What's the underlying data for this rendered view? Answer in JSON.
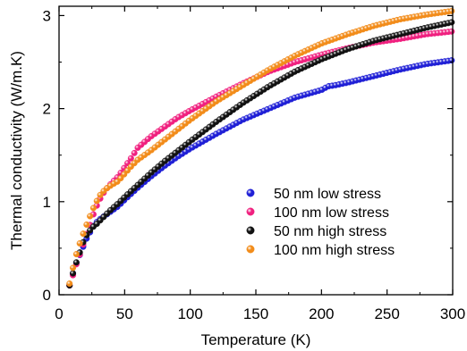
{
  "chart_data": {
    "type": "scatter",
    "title": "",
    "xlabel": "Temperature (K)",
    "ylabel": "Thermal conductivity (W/m.K)",
    "xlim": [
      0,
      300
    ],
    "ylim": [
      0,
      3.1
    ],
    "xticks": [
      0,
      50,
      100,
      150,
      200,
      250,
      300
    ],
    "yticks": [
      0,
      1,
      2,
      3
    ],
    "grid": false,
    "legend_position": "center-right",
    "series": [
      {
        "name": "50 nm low stress",
        "color": "#1f1fd6",
        "x": [
          8,
          10,
          12,
          15,
          18,
          20,
          23,
          25,
          28,
          30,
          35,
          40,
          45,
          50,
          60,
          70,
          80,
          90,
          100,
          120,
          140,
          160,
          180,
          200,
          205,
          210,
          220,
          240,
          260,
          280,
          300
        ],
        "y": [
          0.1,
          0.2,
          0.3,
          0.4,
          0.5,
          0.58,
          0.65,
          0.72,
          0.77,
          0.8,
          0.85,
          0.9,
          0.95,
          1.02,
          1.15,
          1.27,
          1.38,
          1.48,
          1.57,
          1.73,
          1.88,
          2.0,
          2.12,
          2.2,
          2.24,
          2.25,
          2.28,
          2.35,
          2.42,
          2.48,
          2.52
        ]
      },
      {
        "name": "100 nm low stress",
        "color": "#f0207f",
        "x": [
          8,
          10,
          12,
          15,
          18,
          20,
          23,
          25,
          28,
          30,
          35,
          40,
          45,
          50,
          55,
          60,
          70,
          80,
          90,
          100,
          120,
          140,
          160,
          180,
          200,
          220,
          240,
          260,
          280,
          300
        ],
        "y": [
          0.1,
          0.18,
          0.28,
          0.4,
          0.52,
          0.62,
          0.72,
          0.82,
          0.93,
          1.0,
          1.12,
          1.2,
          1.27,
          1.37,
          1.47,
          1.58,
          1.7,
          1.8,
          1.9,
          1.98,
          2.13,
          2.27,
          2.4,
          2.5,
          2.58,
          2.65,
          2.71,
          2.75,
          2.8,
          2.83
        ]
      },
      {
        "name": "50 nm high stress",
        "color": "#111111",
        "x": [
          8,
          10,
          12,
          15,
          18,
          20,
          23,
          25,
          28,
          30,
          35,
          40,
          45,
          50,
          60,
          70,
          80,
          90,
          100,
          120,
          140,
          160,
          180,
          200,
          220,
          240,
          260,
          280,
          300
        ],
        "y": [
          0.1,
          0.2,
          0.3,
          0.42,
          0.55,
          0.62,
          0.68,
          0.72,
          0.75,
          0.78,
          0.85,
          0.92,
          0.98,
          1.05,
          1.18,
          1.31,
          1.43,
          1.54,
          1.65,
          1.86,
          2.06,
          2.24,
          2.4,
          2.53,
          2.64,
          2.73,
          2.8,
          2.87,
          2.93
        ]
      },
      {
        "name": "100 nm high stress",
        "color": "#f28c1a",
        "x": [
          8,
          10,
          12,
          15,
          18,
          20,
          23,
          25,
          28,
          30,
          35,
          40,
          45,
          50,
          55,
          60,
          70,
          80,
          90,
          100,
          120,
          140,
          160,
          180,
          200,
          220,
          240,
          260,
          280,
          300
        ],
        "y": [
          0.12,
          0.25,
          0.38,
          0.52,
          0.64,
          0.72,
          0.82,
          0.9,
          0.98,
          1.05,
          1.13,
          1.18,
          1.22,
          1.3,
          1.38,
          1.45,
          1.55,
          1.66,
          1.77,
          1.88,
          2.08,
          2.25,
          2.42,
          2.57,
          2.7,
          2.8,
          2.89,
          2.96,
          3.01,
          3.05
        ]
      }
    ]
  }
}
